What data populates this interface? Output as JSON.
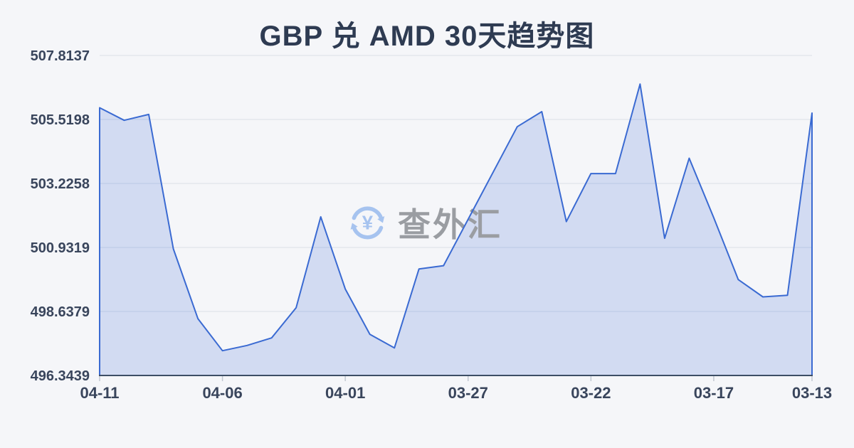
{
  "title": "GBP 兑 AMD 30天趋势图",
  "watermark": {
    "text": "查外汇",
    "yen_symbol": "¥",
    "icon": "currency-refresh-icon",
    "text_color": "#9a9da2",
    "icon_color": "#a6c3ef"
  },
  "colors": {
    "background": "#f5f6f9",
    "line": "#3a6ad2",
    "fill": "rgba(59,106,212,0.19)",
    "grid": "#e3e7ee",
    "axis": "#3d4e66",
    "tick": "#c2c8d2",
    "label": "#39455c",
    "title": "#2e3b52"
  },
  "chart_data": {
    "type": "area",
    "title": "GBP 兑 AMD 30天趋势图",
    "xlabel": "",
    "ylabel": "",
    "legend": "none",
    "grid": "horizontal",
    "x_dates": [
      "04-11",
      "04-10",
      "04-09",
      "04-08",
      "04-07",
      "04-06",
      "04-05",
      "04-04",
      "04-03",
      "04-02",
      "04-01",
      "03-31",
      "03-30",
      "03-29",
      "03-28",
      "03-27",
      "03-26",
      "03-25",
      "03-24",
      "03-23",
      "03-22",
      "03-21",
      "03-20",
      "03-19",
      "03-18",
      "03-17",
      "03-16",
      "03-15",
      "03-14",
      "03-13"
    ],
    "values": [
      505.94,
      505.49,
      505.7,
      500.88,
      498.38,
      497.23,
      497.42,
      497.69,
      498.77,
      502.03,
      499.44,
      497.82,
      497.33,
      500.16,
      500.28,
      501.94,
      503.6,
      505.26,
      505.8,
      501.86,
      503.58,
      503.58,
      506.79,
      501.26,
      504.13,
      502.0,
      499.78,
      499.16,
      499.22,
      505.75
    ],
    "x_tick_labels": [
      "04-11",
      "04-06",
      "04-01",
      "03-27",
      "03-22",
      "03-17",
      "03-13"
    ],
    "x_tick_indices": [
      0,
      5,
      10,
      15,
      20,
      25,
      29
    ],
    "y_tick_labels": [
      "507.8137",
      "505.5198",
      "503.2258",
      "500.9319",
      "498.6379",
      "496.3439"
    ],
    "ylim": [
      496.3439,
      507.8137
    ]
  }
}
